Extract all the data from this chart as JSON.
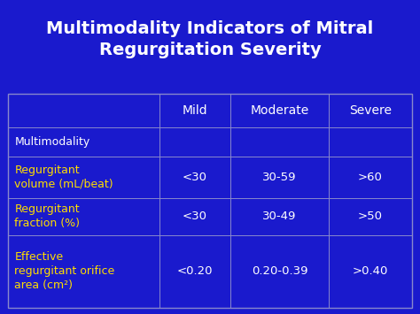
{
  "title_line1": "Multimodality Indicators of Mitral",
  "title_line2": "Regurgitation Severity",
  "background_color": "#1a1acd",
  "title_color": "#FFFFFF",
  "table_border_color": "#8888cc",
  "header_text_color": "#FFFFFF",
  "yellow_text_color": "#FFDD00",
  "white_text_color": "#FFFFFF",
  "col_headers": [
    "",
    "Mild",
    "Moderate",
    "Severe"
  ],
  "rows": [
    {
      "label": "Multimodality",
      "label_color": "white",
      "values": [
        "",
        "",
        ""
      ]
    },
    {
      "label": "Regurgitant\nvolume (mL/beat)",
      "label_color": "yellow",
      "values": [
        "<30",
        "30-59",
        ">60"
      ]
    },
    {
      "label": "Regurgitant\nfraction (%)",
      "label_color": "yellow",
      "values": [
        "<30",
        "30-49",
        ">50"
      ]
    },
    {
      "label": "Effective\nregurgitant orifice\narea (cm²)",
      "label_color": "yellow",
      "values": [
        "<0.20",
        "0.20-0.39",
        ">0.40"
      ]
    }
  ],
  "figsize": [
    4.74,
    3.55
  ],
  "dpi": 100
}
